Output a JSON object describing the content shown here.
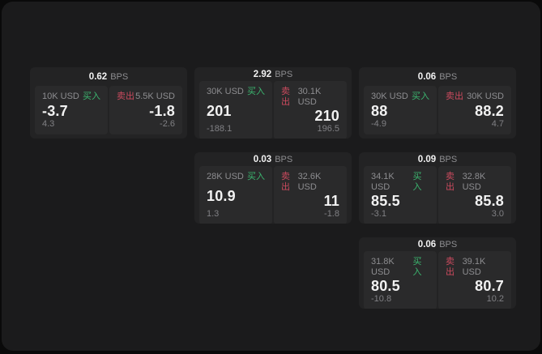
{
  "page": {
    "bps_suffix": "BPS",
    "buy_label": "买入",
    "sell_label": "卖出"
  },
  "colors": {
    "outer_bg": "#0a0a0a",
    "window_bg": "#1b1b1c",
    "card_bg": "#232324",
    "panel_bg": "#2a2a2b",
    "text_primary": "#f2f2f2",
    "text_muted": "#8d8d90",
    "text_sub": "#808084",
    "buy_green": "#3bb56f",
    "sell_red": "#cb4a5e"
  },
  "cards": [
    {
      "bps": "0.62",
      "row": 1,
      "col": 1,
      "buy": {
        "amount": "10K USD",
        "value": "-3.7",
        "sub": "4.3"
      },
      "sell": {
        "amount": "5.5K USD",
        "value": "-1.8",
        "sub": "-2.6"
      }
    },
    {
      "bps": "2.92",
      "row": 1,
      "col": 2,
      "buy": {
        "amount": "30K USD",
        "value": "201",
        "sub": "-188.1"
      },
      "sell": {
        "amount": "30.1K USD",
        "value": "210",
        "sub": "196.5"
      }
    },
    {
      "bps": "0.06",
      "row": 1,
      "col": 3,
      "buy": {
        "amount": "30K USD",
        "value": "88",
        "sub": "-4.9"
      },
      "sell": {
        "amount": "30K USD",
        "value": "88.2",
        "sub": "4.7"
      }
    },
    {
      "bps": "0.03",
      "row": 2,
      "col": 2,
      "buy": {
        "amount": "28K USD",
        "value": "10.9",
        "sub": "1.3"
      },
      "sell": {
        "amount": "32.6K USD",
        "value": "11",
        "sub": "-1.8"
      }
    },
    {
      "bps": "0.09",
      "row": 2,
      "col": 3,
      "buy": {
        "amount": "34.1K USD",
        "value": "85.5",
        "sub": "-3.1"
      },
      "sell": {
        "amount": "32.8K USD",
        "value": "85.8",
        "sub": "3.0"
      }
    },
    {
      "bps": "0.06",
      "row": 3,
      "col": 3,
      "buy": {
        "amount": "31.8K USD",
        "value": "80.5",
        "sub": "-10.8"
      },
      "sell": {
        "amount": "39.1K USD",
        "value": "80.7",
        "sub": "10.2"
      }
    }
  ]
}
